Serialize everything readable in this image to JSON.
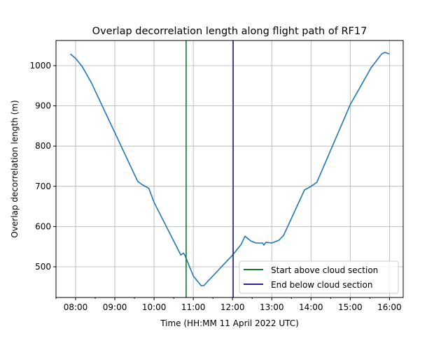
{
  "chart_data": {
    "type": "line",
    "title": "Overlap decorrelation length along flight path of RF17",
    "xlabel": "Time (HH:MM 11 April 2022 UTC)",
    "ylabel": "Overlap decorrelation length (m)",
    "xlim": [
      "07:30",
      "16:21"
    ],
    "ylim": [
      423.6,
      1062.5
    ],
    "xticks": [
      "08:00",
      "09:00",
      "10:00",
      "11:00",
      "12:00",
      "13:00",
      "14:00",
      "15:00",
      "16:00"
    ],
    "xminor_interval_minutes": 30,
    "yticks": [
      500,
      600,
      700,
      800,
      900,
      1000
    ],
    "grid": true,
    "legend_position": "lower-right",
    "series": [
      {
        "color": "#1f77b4",
        "x": [
          "07:52",
          "08:00",
          "08:10",
          "08:24",
          "09:35",
          "09:42",
          "09:52",
          "10:00",
          "10:41",
          "10:45",
          "10:47",
          "11:00",
          "11:12",
          "11:16",
          "11:20",
          "12:00",
          "12:13",
          "12:19",
          "12:28",
          "12:36",
          "12:46",
          "12:48",
          "12:51",
          "13:00",
          "13:11",
          "13:18",
          "13:50",
          "14:00",
          "14:09",
          "15:00",
          "15:32",
          "15:48",
          "15:53",
          "16:00"
        ],
        "y": [
          1029,
          1018,
          998,
          958,
          712,
          704,
          695,
          660,
          529,
          534,
          529,
          477,
          453,
          453,
          460,
          529,
          555,
          576,
          564,
          559,
          559,
          554,
          561,
          559,
          566,
          578,
          691,
          700,
          710,
          903,
          995,
          1029,
          1033,
          1029
        ]
      }
    ],
    "vlines": [
      {
        "name": "Start above cloud section",
        "x": "10:49",
        "color": "#137a2f"
      },
      {
        "name": "End below cloud section",
        "x": "12:01",
        "color": "#2e2196"
      }
    ]
  }
}
